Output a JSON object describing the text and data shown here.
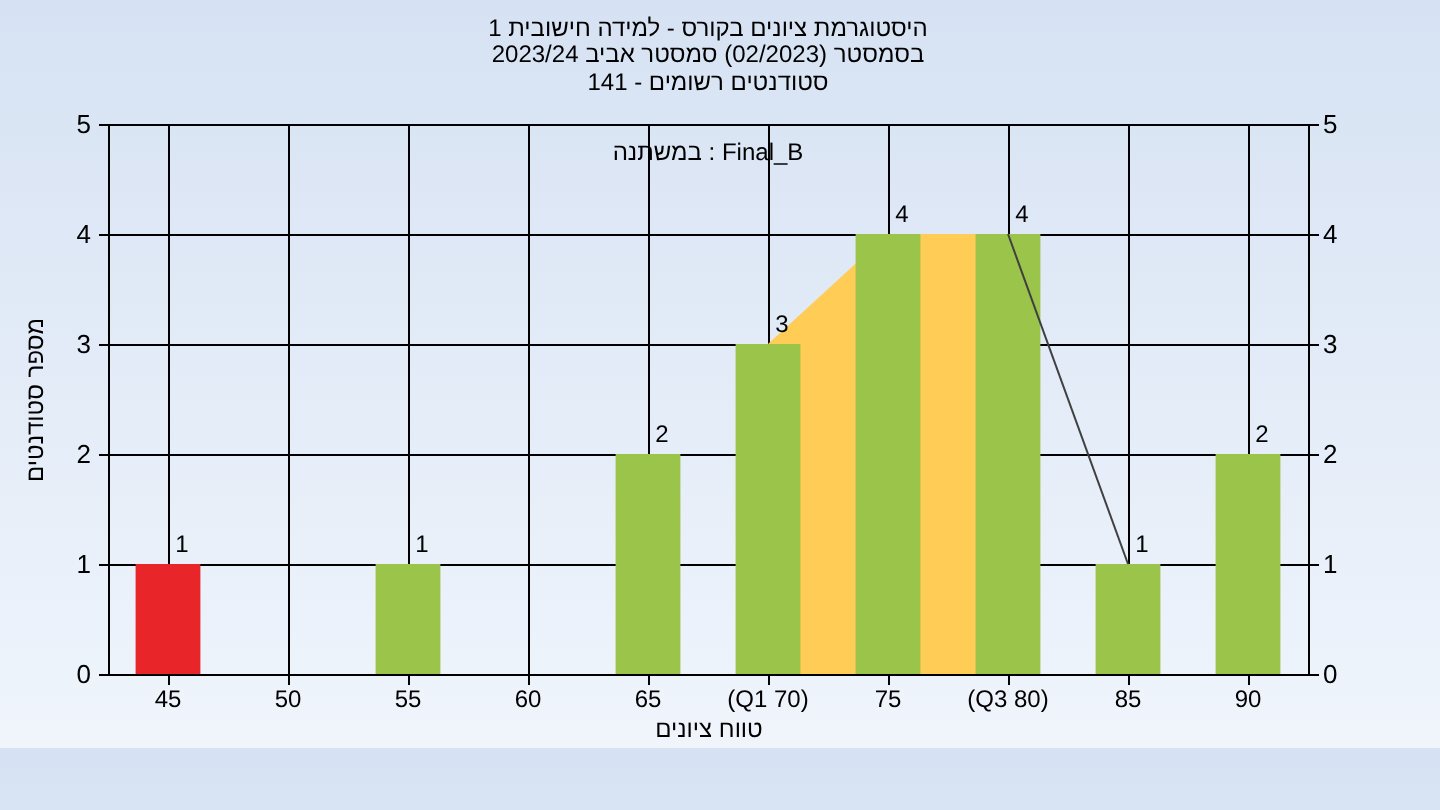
{
  "chart_data": {
    "type": "bar",
    "title": "היסטוגרמת ציונים בקורס - למידה חישובית 1",
    "subtitle": "בסמסטר  (02/2023)  סמסטר אביב 2023/24\nסטודנטים רשומים - 141",
    "xlabel": "טווח ציונים",
    "ylabel": "מספר סטודנטים",
    "annotations": [
      "במשתנה : Final_B"
    ],
    "categories": [
      "45",
      "50",
      "55",
      "60",
      "65",
      "(Q1 70)",
      "75",
      "(Q3 80)",
      "85",
      "90"
    ],
    "series": [
      {
        "type": "area",
        "color": "#ffcc55",
        "values": [
          null,
          null,
          null,
          null,
          null,
          3,
          4,
          4,
          null,
          null
        ]
      },
      {
        "type": "line",
        "color": "#404040",
        "values": [
          null,
          null,
          null,
          null,
          null,
          null,
          null,
          4,
          1,
          null
        ]
      },
      {
        "values": [
          1,
          0,
          1,
          0,
          2,
          3,
          4,
          4,
          1,
          2
        ],
        "colors": [
          "#e8262a",
          "#9bc44a",
          "#9bc44a",
          "#9bc44a",
          "#9bc44a",
          "#9bc44a",
          "#9bc44a",
          "#9bc44a",
          "#9bc44a",
          "#9bc44a"
        ],
        "value_labels": [
          "1",
          null,
          "1",
          null,
          "2",
          "3",
          "4",
          "4",
          "1",
          "2"
        ]
      }
    ],
    "ylim": [
      0,
      5
    ],
    "yticks": [
      0,
      1,
      2,
      3,
      4,
      5
    ],
    "y2lim": [
      0,
      5
    ],
    "y2ticks": [
      0,
      1,
      2,
      3,
      4,
      5
    ],
    "grid": true
  }
}
